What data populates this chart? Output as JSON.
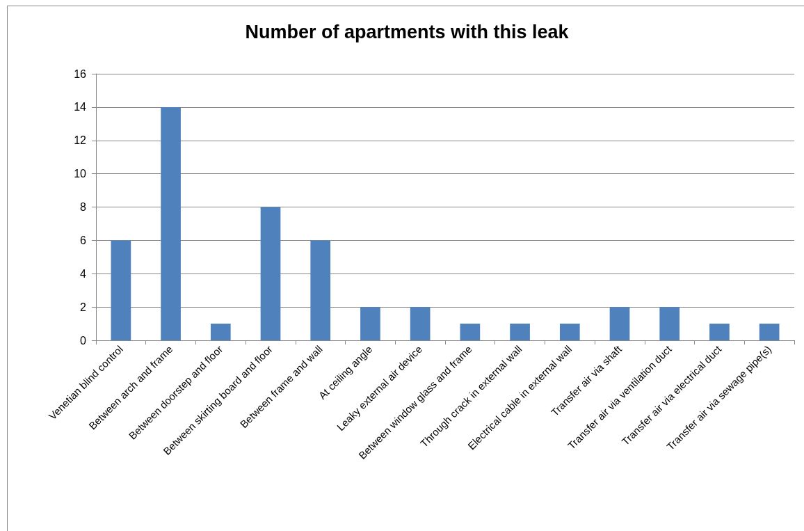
{
  "chart_data": {
    "type": "bar",
    "title": "Number of apartments with this leak",
    "categories": [
      "Venetian blind control",
      "Between arch and frame",
      "Between doorstep and floor",
      "Between skirting board and floor",
      "Between frame and wall",
      "At ceiling angle",
      "Leaky external air device",
      "Between window glass and frame",
      "Through crack in external wall",
      "Electrical cable in external wall",
      "Transfer air via shaft",
      "Transfer air via ventilation duct",
      "Transfer air via electrical duct",
      "Transfer air via sewage pipe(s)"
    ],
    "values": [
      6,
      14,
      1,
      8,
      6,
      2,
      2,
      1,
      1,
      1,
      2,
      2,
      1,
      1
    ],
    "color": "#4f81bd",
    "ylim": [
      0,
      16
    ],
    "yticks": [
      0,
      2,
      4,
      6,
      8,
      10,
      12,
      14,
      16
    ],
    "grid": "y"
  }
}
